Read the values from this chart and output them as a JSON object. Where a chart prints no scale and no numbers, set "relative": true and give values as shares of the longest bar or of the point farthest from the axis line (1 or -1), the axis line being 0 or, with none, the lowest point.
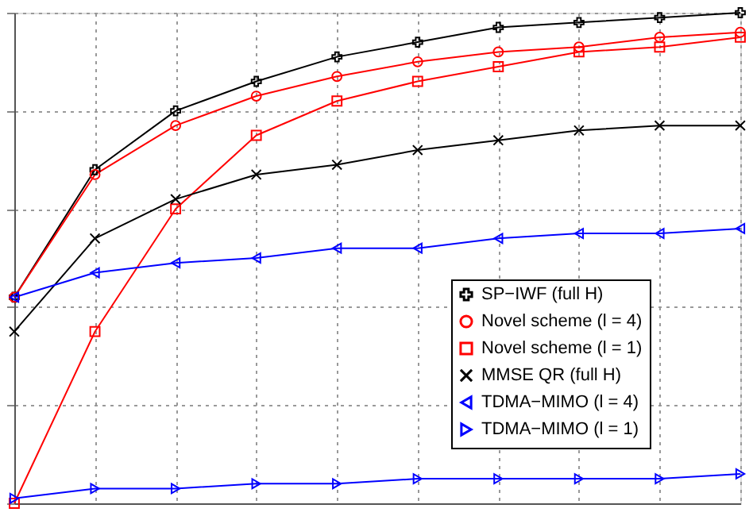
{
  "chart_data": {
    "type": "line",
    "relative": true,
    "grid": true,
    "legend": "right",
    "line_style": "solid",
    "categories": [
      null,
      null,
      null,
      null,
      null,
      null,
      null,
      null,
      null,
      null
    ],
    "series": [
      {
        "name": "SP−IWF (full H)",
        "color": "#000000",
        "marker": "cross",
        "values": [
          0.42,
          0.68,
          0.8,
          0.86,
          0.91,
          0.94,
          0.97,
          0.98,
          0.99,
          1.0
        ]
      },
      {
        "name": "Novel scheme (l = 4)",
        "color": "#ff0000",
        "marker": "circle",
        "values": [
          0.42,
          0.67,
          0.77,
          0.83,
          0.87,
          0.9,
          0.92,
          0.93,
          0.95,
          0.96
        ]
      },
      {
        "name": "Novel scheme (l = 1)",
        "color": "#ff0000",
        "marker": "square",
        "values": [
          0.0,
          0.35,
          0.6,
          0.75,
          0.82,
          0.86,
          0.89,
          0.92,
          0.93,
          0.95
        ]
      },
      {
        "name": "MMSE QR (full H)",
        "color": "#000000",
        "marker": "x",
        "values": [
          0.35,
          0.54,
          0.62,
          0.67,
          0.69,
          0.72,
          0.74,
          0.76,
          0.77,
          0.77
        ]
      },
      {
        "name": "TDMA−MIMO (l = 4)",
        "color": "#0000ff",
        "marker": "triangle-left",
        "values": [
          0.42,
          0.47,
          0.49,
          0.5,
          0.52,
          0.52,
          0.54,
          0.55,
          0.55,
          0.56
        ]
      },
      {
        "name": "TDMA−MIMO (l = 1)",
        "color": "#0000ff",
        "marker": "triangle-right",
        "values": [
          0.01,
          0.03,
          0.03,
          0.04,
          0.04,
          0.05,
          0.05,
          0.05,
          0.05,
          0.06
        ]
      }
    ]
  }
}
